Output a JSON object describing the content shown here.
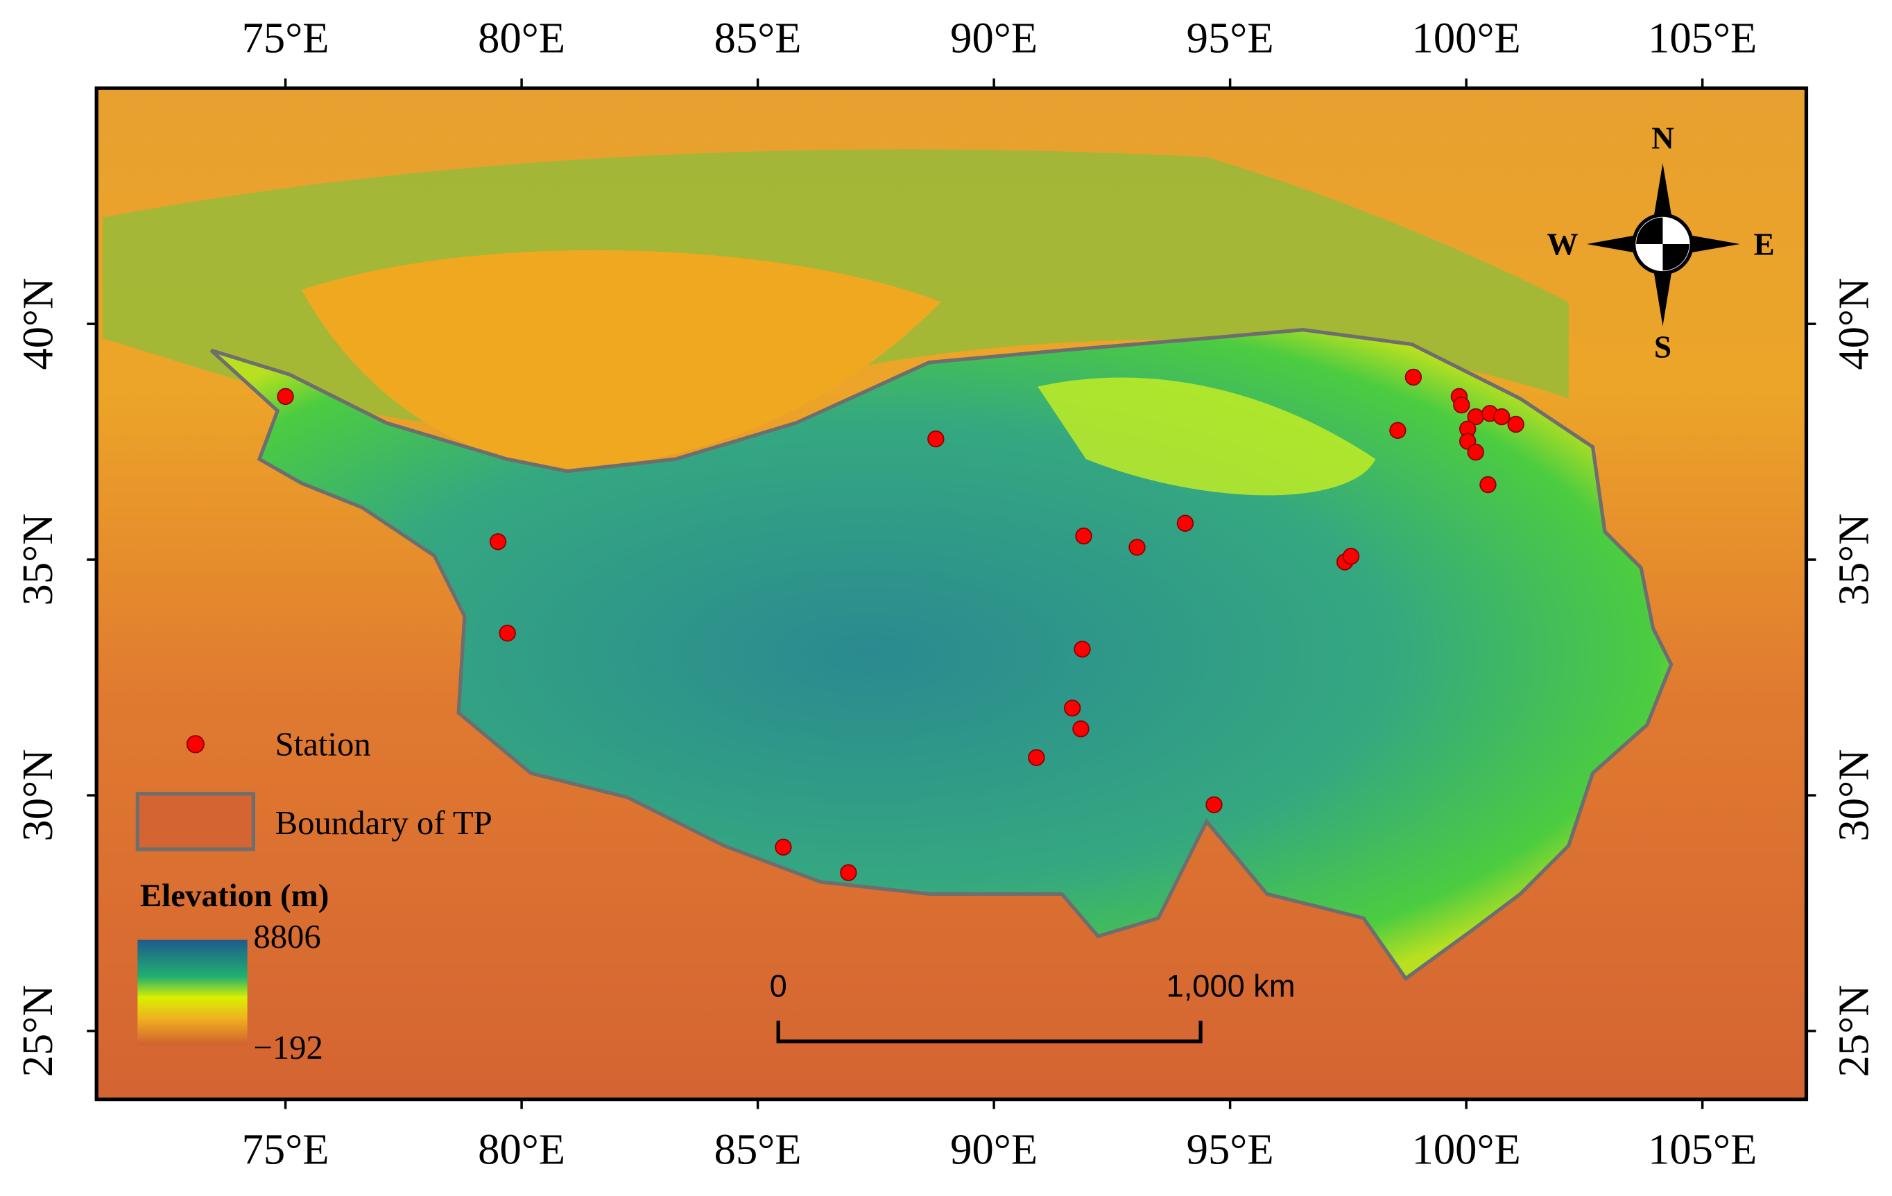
{
  "map": {
    "xlim": [
      71.0,
      107.2
    ],
    "ylim": [
      23.55,
      45.0
    ],
    "xticks": [
      {
        "value": 75,
        "label": "75°E"
      },
      {
        "value": 80,
        "label": "80°E"
      },
      {
        "value": 85,
        "label": "85°E"
      },
      {
        "value": 90,
        "label": "90°E"
      },
      {
        "value": 95,
        "label": "95°E"
      },
      {
        "value": 100,
        "label": "100°E"
      },
      {
        "value": 105,
        "label": "105°E"
      }
    ],
    "yticks": [
      {
        "value": 25,
        "label": "25°N"
      },
      {
        "value": 30,
        "label": "30°N"
      },
      {
        "value": 35,
        "label": "35°N"
      },
      {
        "value": 40,
        "label": "40°N"
      }
    ],
    "stations": {
      "name": "Station",
      "color": "#ff0000",
      "x": [
        75.0,
        79.5,
        79.7,
        88.77,
        91.9,
        93.03,
        94.05,
        97.43,
        97.56,
        98.88,
        98.55,
        99.85,
        99.9,
        100.2,
        100.5,
        100.75,
        101.05,
        100.03,
        100.03,
        100.2,
        100.46,
        91.87,
        91.66,
        91.84,
        90.9,
        94.66,
        85.54,
        86.92
      ],
      "y": [
        38.46,
        35.38,
        33.44,
        37.56,
        35.5,
        35.26,
        35.77,
        34.95,
        35.07,
        38.87,
        37.74,
        38.46,
        38.28,
        38.03,
        38.1,
        38.03,
        37.87,
        37.77,
        37.51,
        37.28,
        36.59,
        33.1,
        31.85,
        31.41,
        30.8,
        29.8,
        28.9,
        28.36
      ]
    },
    "boundary": {
      "name": "Boundary of TP",
      "color": "#6e6e6e"
    },
    "colorbar": {
      "title": "Elevation (m)",
      "max": 8806,
      "min": {
        "value": -192,
        "label": "−192"
      }
    },
    "scalebar": {
      "start": "0",
      "end": "1,000 km"
    },
    "compass": {
      "n": "N",
      "s": "S",
      "w": "W",
      "e": "E"
    }
  }
}
